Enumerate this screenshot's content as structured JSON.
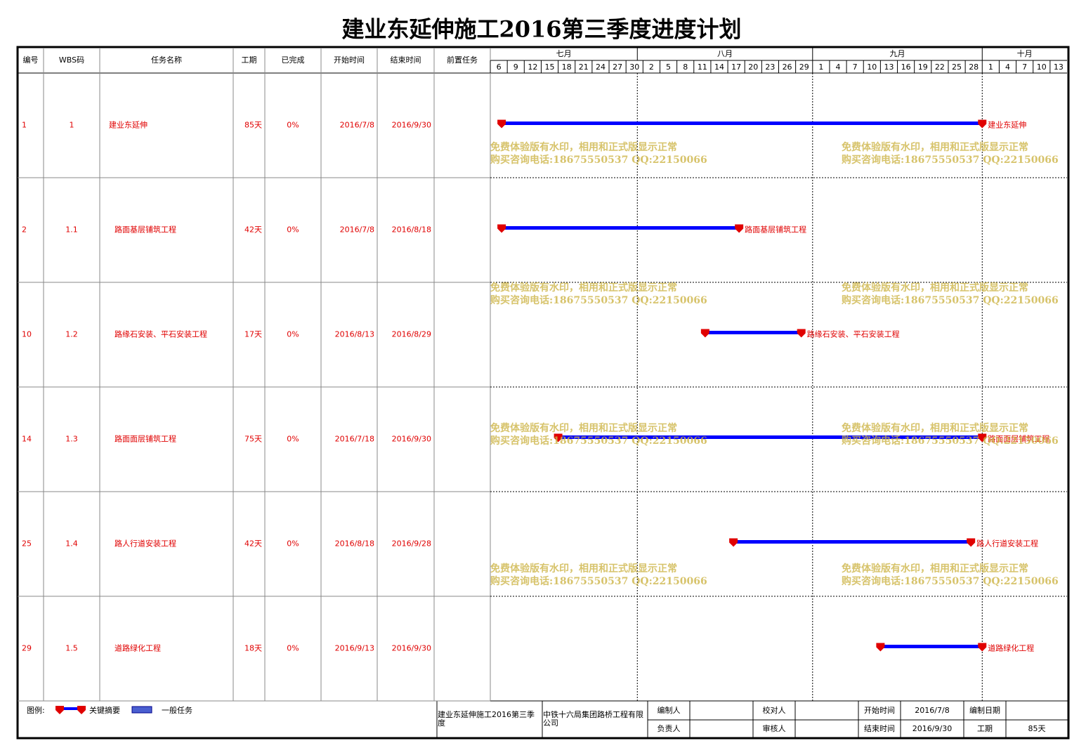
{
  "header": {
    "title": "建业东延伸施工2016第三季度进度计划"
  },
  "table": {
    "columns": [
      "编号",
      "WBS码",
      "任务名称",
      "工期",
      "已完成",
      "开始时间",
      "结束时间",
      "前置任务"
    ],
    "rows": [
      {
        "id": "1",
        "wbs": "1",
        "name": "建业东延伸",
        "duration": "85天",
        "done": "0%",
        "start": "2016/7/8",
        "end": "2016/9/30"
      },
      {
        "id": "2",
        "wbs": "1.1",
        "name": "路面基层铺筑工程",
        "duration": "42天",
        "done": "0%",
        "start": "2016/7/8",
        "end": "2016/8/18"
      },
      {
        "id": "10",
        "wbs": "1.2",
        "name": "路缘石安装、平石安装工程",
        "duration": "17天",
        "done": "0%",
        "start": "2016/8/13",
        "end": "2016/8/29"
      },
      {
        "id": "14",
        "wbs": "1.3",
        "name": "路面面层铺筑工程",
        "duration": "75天",
        "done": "0%",
        "start": "2016/7/18",
        "end": "2016/9/30"
      },
      {
        "id": "25",
        "wbs": "1.4",
        "name": "路人行道安装工程",
        "duration": "42天",
        "done": "0%",
        "start": "2016/8/18",
        "end": "2016/9/28"
      },
      {
        "id": "29",
        "wbs": "1.5",
        "name": "道路绿化工程",
        "duration": "18天",
        "done": "0%",
        "start": "2016/9/13",
        "end": "2016/9/30"
      }
    ]
  },
  "timeline": {
    "months": [
      "七月",
      "八月",
      "九月",
      "十月"
    ],
    "days": [
      6,
      9,
      12,
      15,
      18,
      21,
      24,
      27,
      30,
      2,
      5,
      8,
      11,
      14,
      17,
      20,
      23,
      26,
      29,
      1,
      4,
      7,
      10,
      13,
      16,
      19,
      22,
      25,
      28,
      1,
      4,
      7,
      10,
      13
    ]
  },
  "watermark": {
    "line1": "免费体验版有水印，相用和正式版显示正常",
    "line2": "购买咨询电话:18675550537 QQ:22150066"
  },
  "footer": {
    "legend_title": "图例:",
    "legend": [
      "关键摘要",
      "一般任务"
    ],
    "project": "建业东延伸施工2016第三季度",
    "company": "中铁十六局集团路桥工程有限公司",
    "labels": {
      "editor": "编制人",
      "owner": "负责人",
      "checker": "校对人",
      "reviewer": "审核人",
      "start": "开始时间",
      "end": "结束时间",
      "date": "编制日期",
      "duration": "工期"
    },
    "values": {
      "start": "2016/7/8",
      "end": "2016/9/30",
      "duration": "85天"
    }
  }
}
